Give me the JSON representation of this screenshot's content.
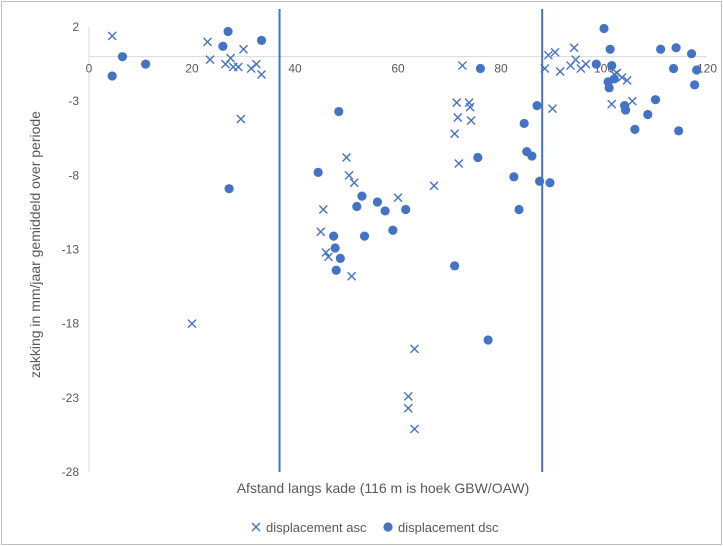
{
  "chart_data": {
    "type": "scatter",
    "title": "",
    "xlabel": "Afstand langs kade (116 m is hoek GBW/OAW)",
    "ylabel": "zakking in mm/jaar gemiddeld over periode",
    "xlim": [
      0,
      120
    ],
    "ylim": [
      -28,
      2
    ],
    "x_ticks": [
      0,
      20,
      40,
      60,
      80,
      100,
      120
    ],
    "y_ticks": [
      2,
      -3,
      -8,
      -13,
      -18,
      -23,
      -28
    ],
    "grid": false,
    "legend": "bottom",
    "vertical_lines": [
      37,
      88
    ],
    "colors": {
      "series": "#4472c4",
      "vline": "#4472c4",
      "axis": "#d9d9d9",
      "frame": "#bfbfbf"
    },
    "series": [
      {
        "name": "displacement asc",
        "marker": "x",
        "points": [
          [
            4.5,
            1.4
          ],
          [
            20,
            -18
          ],
          [
            23,
            1
          ],
          [
            23.5,
            -0.2
          ],
          [
            26.5,
            -0.5
          ],
          [
            27.5,
            -0.1
          ],
          [
            28,
            -0.7
          ],
          [
            29,
            -0.7
          ],
          [
            29.5,
            -4.2
          ],
          [
            30,
            0.5
          ],
          [
            31.5,
            -0.8
          ],
          [
            32.5,
            -0.5
          ],
          [
            33.5,
            -1.2
          ],
          [
            45,
            -11.8
          ],
          [
            45.5,
            -10.3
          ],
          [
            46,
            -13.2
          ],
          [
            46.5,
            -13.5
          ],
          [
            50,
            -6.8
          ],
          [
            50.5,
            -8
          ],
          [
            51,
            -14.8
          ],
          [
            51.5,
            -8.5
          ],
          [
            60,
            -9.5
          ],
          [
            62,
            -22.9
          ],
          [
            62,
            -23.7
          ],
          [
            63.2,
            -25.1
          ],
          [
            63.2,
            -19.7
          ],
          [
            67,
            -8.7
          ],
          [
            71,
            -5.2
          ],
          [
            71.4,
            -3.1
          ],
          [
            71.6,
            -4.1
          ],
          [
            71.8,
            -7.2
          ],
          [
            72.5,
            -0.6
          ],
          [
            73.8,
            -3.1
          ],
          [
            74,
            -3.4
          ],
          [
            74.2,
            -4.3
          ],
          [
            88.5,
            -0.8
          ],
          [
            89.2,
            0.1
          ],
          [
            90,
            -3.5
          ],
          [
            90.5,
            0.3
          ],
          [
            91.5,
            -1
          ],
          [
            93.5,
            -0.6
          ],
          [
            94.2,
            0.6
          ],
          [
            94.5,
            -0.2
          ],
          [
            95.5,
            -0.8
          ],
          [
            96.5,
            -0.5
          ],
          [
            101.5,
            -3.2
          ],
          [
            102,
            -1.2
          ],
          [
            102.5,
            -1.1
          ],
          [
            103.5,
            -1.4
          ],
          [
            104.5,
            -1.6
          ],
          [
            105.5,
            -3
          ]
        ]
      },
      {
        "name": "displacement dsc",
        "marker": "o",
        "points": [
          [
            4.5,
            -1.3
          ],
          [
            6.5,
            0
          ],
          [
            11,
            -0.5
          ],
          [
            26,
            0.7
          ],
          [
            27,
            1.7
          ],
          [
            27.2,
            -8.9
          ],
          [
            33.5,
            1.1
          ],
          [
            44.5,
            -7.8
          ],
          [
            47.5,
            -12.1
          ],
          [
            47.8,
            -12.9
          ],
          [
            48,
            -14.4
          ],
          [
            48.5,
            -3.7
          ],
          [
            48.8,
            -13.6
          ],
          [
            52,
            -10.1
          ],
          [
            53,
            -9.4
          ],
          [
            53.5,
            -12.1
          ],
          [
            56,
            -9.8
          ],
          [
            57.5,
            -10.4
          ],
          [
            59,
            -11.7
          ],
          [
            61.5,
            -10.3
          ],
          [
            71,
            -14.1
          ],
          [
            75.5,
            -6.8
          ],
          [
            76,
            -0.8
          ],
          [
            77.5,
            -19.1
          ],
          [
            82.5,
            -8.1
          ],
          [
            83.5,
            -10.3
          ],
          [
            84.5,
            -4.5
          ],
          [
            85,
            -6.4
          ],
          [
            86,
            -6.7
          ],
          [
            87,
            -3.3
          ],
          [
            87.5,
            -8.4
          ],
          [
            89.5,
            -8.5
          ],
          [
            98.5,
            -0.5
          ],
          [
            100,
            1.9
          ],
          [
            100.8,
            -1.7
          ],
          [
            101,
            -2.1
          ],
          [
            101.2,
            0.5
          ],
          [
            101.5,
            -0.6
          ],
          [
            102,
            -1.5
          ],
          [
            104,
            -3.3
          ],
          [
            104.2,
            -3.6
          ],
          [
            106,
            -4.9
          ],
          [
            108.5,
            -3.9
          ],
          [
            110,
            -2.9
          ],
          [
            111,
            0.5
          ],
          [
            113.5,
            -0.8
          ],
          [
            114,
            0.6
          ],
          [
            114.5,
            -5
          ],
          [
            117,
            0.2
          ],
          [
            117.6,
            -1.9
          ],
          [
            118,
            -0.9
          ]
        ]
      }
    ]
  }
}
